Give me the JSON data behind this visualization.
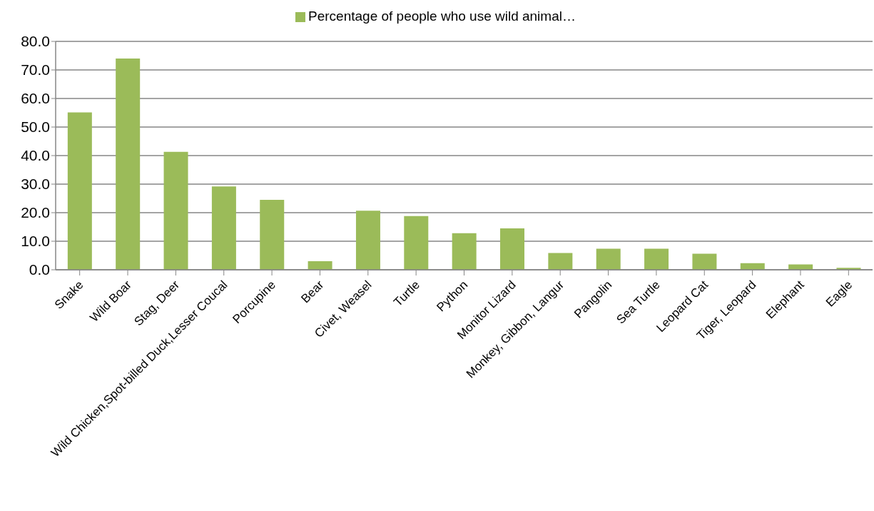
{
  "chart_data": {
    "type": "bar",
    "categories": [
      "Snake",
      "Wild Boar",
      "Stag, Deer",
      "Wild Chicken,Spot-billed Duck,Lesser Coucal",
      "Porcupine",
      "Bear",
      "Civet, Weasel",
      "Turtle",
      "Python",
      "Monitor Lizard",
      "Monkey, Gibbon, Langur",
      "Pangolin",
      "Sea Turtle",
      "Leopard Cat",
      "Tiger, Leopard",
      "Elephant",
      "Eagle"
    ],
    "series": [
      {
        "name": "Percentage of people who use wild animal…",
        "color": "#9bbb59",
        "values": [
          55.1,
          74.0,
          41.3,
          29.2,
          24.5,
          3.0,
          20.7,
          18.8,
          12.8,
          14.5,
          5.9,
          7.4,
          7.4,
          5.6,
          2.3,
          1.9,
          0.7
        ]
      }
    ],
    "ylim": [
      0,
      80
    ],
    "yticks": [
      {
        "value": 0,
        "label": "0.0"
      },
      {
        "value": 10,
        "label": "10.0"
      },
      {
        "value": 20,
        "label": "20.0"
      },
      {
        "value": 30,
        "label": "30.0"
      },
      {
        "value": 40,
        "label": "40.0"
      },
      {
        "value": 50,
        "label": "50.0"
      },
      {
        "value": 60,
        "label": "60.0"
      },
      {
        "value": 70,
        "label": "70.0"
      },
      {
        "value": 80,
        "label": "80.0"
      }
    ],
    "grid": "y",
    "legend": "top"
  }
}
